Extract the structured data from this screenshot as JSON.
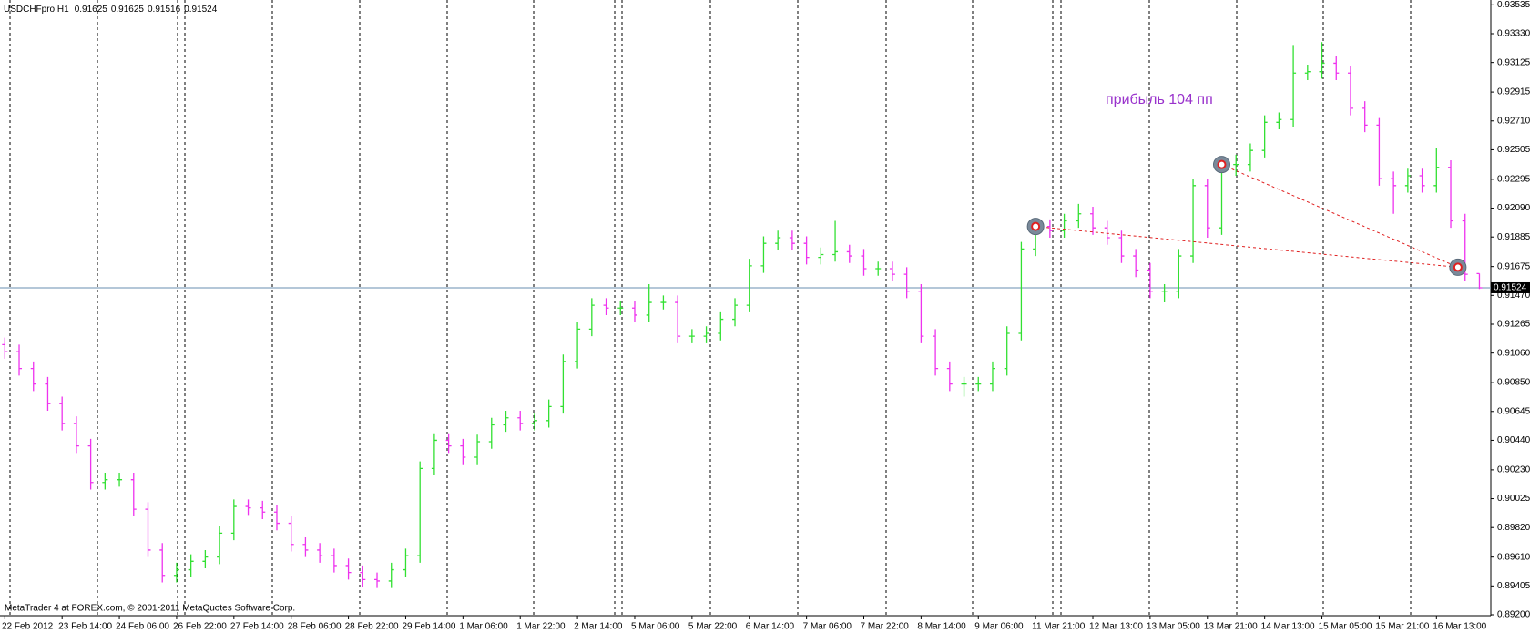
{
  "chart_data": {
    "type": "ohlc",
    "symbol": "USDCHFpro,H1",
    "annotation": "прибыль 104 пп",
    "footer": "MetaTrader 4 at FOREX.com, © 2001-2011 MetaQuotes Software Corp.",
    "up_color": "#32e032",
    "down_color": "#ee33ee",
    "categories": [
      "22 Feb 2012",
      null,
      null,
      null,
      "23 Feb 14:00",
      null,
      null,
      null,
      "24 Feb 06:00",
      null,
      null,
      null,
      "26 Feb 22:00",
      null,
      null,
      null,
      "27 Feb 14:00",
      null,
      null,
      null,
      "28 Feb 06:00",
      null,
      null,
      null,
      "28 Feb 22:00",
      null,
      null,
      null,
      "29 Feb 14:00",
      null,
      null,
      null,
      "1 Mar 06:00",
      null,
      null,
      null,
      "1 Mar 22:00",
      null,
      null,
      null,
      "2 Mar 14:00",
      null,
      null,
      null,
      "5 Mar 06:00",
      null,
      null,
      null,
      "5 Mar 22:00",
      null,
      null,
      null,
      "6 Mar 14:00",
      null,
      null,
      null,
      "7 Mar 06:00",
      null,
      null,
      null,
      "7 Mar 22:00",
      null,
      null,
      null,
      "8 Mar 14:00",
      null,
      null,
      null,
      "9 Mar 06:00",
      null,
      null,
      null,
      "11 Mar 21:00",
      null,
      null,
      null,
      "12 Mar 13:00",
      null,
      null,
      null,
      "13 Mar 05:00",
      null,
      null,
      null,
      "13 Mar 21:00",
      null,
      null,
      null,
      "14 Mar 13:00",
      null,
      null,
      null,
      "15 Mar 05:00",
      null,
      null,
      null,
      "15 Mar 21:00",
      null,
      null,
      null,
      "16 Mar 13:00",
      null,
      null,
      null
    ],
    "open": [
      0.9112,
      0.9107,
      0.9095,
      0.9084,
      0.907,
      0.9056,
      0.904,
      0.9014,
      0.9016,
      0.9016,
      0.8995,
      0.8966,
      0.8948,
      0.8952,
      0.8958,
      0.8961,
      0.8978,
      0.8997,
      0.8996,
      0.8993,
      0.8985,
      0.897,
      0.8966,
      0.8962,
      0.8955,
      0.895,
      0.8945,
      0.8944,
      0.8952,
      0.8962,
      0.9024,
      0.9044,
      0.904,
      0.9032,
      0.9043,
      0.9055,
      0.906,
      0.9056,
      0.9058,
      0.9068,
      0.91,
      0.9123,
      0.914,
      0.9138,
      0.9138,
      0.9133,
      0.9142,
      0.9142,
      0.9118,
      0.9118,
      0.912,
      0.913,
      0.914,
      0.9168,
      0.9184,
      0.9188,
      0.9184,
      0.9174,
      0.9176,
      0.9178,
      0.9175,
      0.9166,
      0.9166,
      0.9162,
      0.915,
      0.9118,
      0.9095,
      0.9084,
      0.9084,
      0.9084,
      0.9095,
      0.912,
      0.918,
      0.9196,
      0.9193,
      0.92,
      0.9205,
      0.9195,
      0.9188,
      0.9175,
      0.9165,
      0.915,
      0.915,
      0.9175,
      0.9225,
      0.9195,
      0.924,
      0.924,
      0.925,
      0.927,
      0.9272,
      0.9305,
      0.9306,
      0.9312,
      0.9305,
      0.928,
      0.9268,
      0.923,
      0.9225,
      0.9232,
      0.9225,
      0.9238,
      0.92,
      0.91625
    ],
    "high": [
      0.9117,
      0.9112,
      0.91,
      0.9089,
      0.9075,
      0.9061,
      0.9045,
      0.9021,
      0.9021,
      0.9021,
      0.9,
      0.8971,
      0.8957,
      0.8963,
      0.8966,
      0.8983,
      0.9002,
      0.9002,
      0.9001,
      0.8998,
      0.899,
      0.8975,
      0.8971,
      0.8967,
      0.896,
      0.8955,
      0.895,
      0.8957,
      0.8967,
      0.9029,
      0.9049,
      0.9049,
      0.9045,
      0.9048,
      0.906,
      0.9065,
      0.9065,
      0.9063,
      0.9073,
      0.9105,
      0.9128,
      0.9145,
      0.9145,
      0.9143,
      0.9143,
      0.9155,
      0.9147,
      0.9147,
      0.9123,
      0.9125,
      0.9135,
      0.9145,
      0.9173,
      0.9189,
      0.9193,
      0.9193,
      0.9189,
      0.9181,
      0.92,
      0.9183,
      0.918,
      0.9171,
      0.9171,
      0.9167,
      0.9155,
      0.9123,
      0.91,
      0.9089,
      0.9089,
      0.91,
      0.9125,
      0.9185,
      0.9201,
      0.9201,
      0.9205,
      0.9212,
      0.921,
      0.92,
      0.9193,
      0.918,
      0.917,
      0.9155,
      0.918,
      0.923,
      0.923,
      0.9245,
      0.9247,
      0.9255,
      0.9275,
      0.9277,
      0.9325,
      0.9311,
      0.9327,
      0.9317,
      0.931,
      0.9285,
      0.9273,
      0.9235,
      0.9237,
      0.9237,
      0.9252,
      0.9243,
      0.9205,
      0.91625
    ],
    "low": [
      0.9102,
      0.909,
      0.9079,
      0.9065,
      0.9051,
      0.9035,
      0.9009,
      0.9009,
      0.9011,
      0.899,
      0.8961,
      0.8943,
      0.8943,
      0.8947,
      0.8953,
      0.8956,
      0.8973,
      0.8991,
      0.8988,
      0.898,
      0.8965,
      0.8961,
      0.8957,
      0.895,
      0.8945,
      0.894,
      0.8939,
      0.8939,
      0.8947,
      0.8957,
      0.9019,
      0.9035,
      0.9027,
      0.9027,
      0.9038,
      0.905,
      0.9051,
      0.9051,
      0.9053,
      0.9063,
      0.9095,
      0.9118,
      0.9133,
      0.9133,
      0.9128,
      0.9128,
      0.9137,
      0.9113,
      0.9113,
      0.9113,
      0.9115,
      0.9125,
      0.9135,
      0.9163,
      0.9179,
      0.9179,
      0.9169,
      0.9169,
      0.9171,
      0.917,
      0.9161,
      0.9161,
      0.9157,
      0.9145,
      0.9113,
      0.909,
      0.9079,
      0.9075,
      0.9079,
      0.9079,
      0.909,
      0.9115,
      0.9175,
      0.9188,
      0.9188,
      0.9195,
      0.919,
      0.9183,
      0.917,
      0.916,
      0.9145,
      0.9142,
      0.9145,
      0.917,
      0.9188,
      0.919,
      0.9232,
      0.9235,
      0.9245,
      0.9265,
      0.9267,
      0.93,
      0.9301,
      0.93,
      0.9275,
      0.9263,
      0.9225,
      0.9205,
      0.922,
      0.922,
      0.922,
      0.9195,
      0.9157,
      0.91516
    ],
    "close": [
      0.9107,
      0.9095,
      0.9084,
      0.907,
      0.9056,
      0.904,
      0.9014,
      0.9016,
      0.9016,
      0.8995,
      0.8966,
      0.8948,
      0.8952,
      0.8958,
      0.8961,
      0.8978,
      0.8997,
      0.8996,
      0.8993,
      0.8985,
      0.897,
      0.8966,
      0.8962,
      0.8955,
      0.895,
      0.8945,
      0.8944,
      0.8952,
      0.8962,
      0.9024,
      0.9044,
      0.904,
      0.9032,
      0.9043,
      0.9055,
      0.906,
      0.9056,
      0.9058,
      0.9068,
      0.91,
      0.9123,
      0.914,
      0.9138,
      0.9138,
      0.9133,
      0.9142,
      0.9142,
      0.9118,
      0.9118,
      0.912,
      0.913,
      0.914,
      0.9168,
      0.9184,
      0.9188,
      0.9184,
      0.9174,
      0.9176,
      0.9178,
      0.9175,
      0.9166,
      0.9166,
      0.9162,
      0.915,
      0.9118,
      0.9095,
      0.9084,
      0.9084,
      0.9084,
      0.9095,
      0.912,
      0.918,
      0.9196,
      0.9193,
      0.92,
      0.9205,
      0.9195,
      0.9188,
      0.9175,
      0.9165,
      0.915,
      0.915,
      0.9175,
      0.9225,
      0.9195,
      0.924,
      0.924,
      0.925,
      0.927,
      0.9272,
      0.9305,
      0.9306,
      0.9312,
      0.9305,
      0.928,
      0.9268,
      0.923,
      0.9225,
      0.9232,
      0.9225,
      0.9238,
      0.92,
      0.9162,
      0.91524
    ],
    "current_price": 0.91524,
    "price_line_color": "#6a8fb0",
    "trades": [
      {
        "x": 72,
        "price": 0.9196
      },
      {
        "x": 85,
        "price": 0.924
      },
      {
        "x": 101.5,
        "price": 0.9167
      }
    ],
    "trade_line_color": "#e02020",
    "ylim": [
      0.892,
      0.9355
    ],
    "yticks": [
      0.93535,
      {
        "value": 0.9333,
        "label": "0.93330"
      },
      0.93125,
      0.92915,
      {
        "value": 0.9271,
        "label": "0.92710"
      },
      0.92505,
      0.92295,
      {
        "value": 0.9209,
        "label": "0.92090"
      },
      0.91885,
      0.91675,
      {
        "value": 0.9147,
        "label": "0.91470"
      },
      0.91265,
      {
        "value": 0.9106,
        "label": "0.91060"
      },
      {
        "value": 0.9085,
        "label": "0.90850"
      },
      0.90645,
      {
        "value": 0.9044,
        "label": "0.90440"
      },
      {
        "value": 0.9023,
        "label": "0.90230"
      },
      0.90025,
      {
        "value": 0.8982,
        "label": "0.89820"
      },
      {
        "value": 0.8961,
        "label": "0.89610"
      },
      0.89405,
      {
        "value": 0.892,
        "label": "0.89200"
      }
    ]
  }
}
